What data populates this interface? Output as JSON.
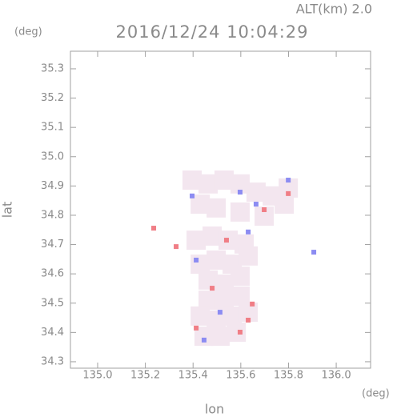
{
  "chart_data": {
    "type": "scatter",
    "title": "2016/12/24 10:04:29",
    "subtitle": "ALT(km) 2.0",
    "x_label": "lon",
    "x_unit": "(deg)",
    "y_label": "lat",
    "y_unit": "(deg)",
    "xlim": [
      134.886,
      136.144
    ],
    "ylim": [
      34.278,
      35.36
    ],
    "xticks": [
      {
        "value": 135,
        "label": "135.0"
      },
      135.2,
      135.4,
      135.6,
      135.8,
      {
        "value": 136,
        "label": "136.0"
      }
    ],
    "yticks": [
      34.3,
      34.4,
      34.5,
      34.6,
      34.7,
      34.8,
      34.9,
      {
        "value": 35,
        "label": "35.0"
      },
      35.1,
      35.2,
      35.3
    ],
    "series": [
      {
        "color": "#f3e6ef",
        "x": [
          135.396,
          135.463,
          135.53,
          135.597,
          135.664,
          135.732,
          135.799,
          135.43,
          135.497,
          135.597,
          135.698,
          135.782,
          135.413,
          135.48,
          135.547,
          135.614,
          135.43,
          135.497,
          135.564,
          135.631,
          135.463,
          135.53,
          135.597,
          135.463,
          135.53,
          135.597,
          135.43,
          135.497,
          135.564,
          135.631,
          135.446,
          135.513,
          135.581
        ],
        "y": [
          34.92,
          34.907,
          34.92,
          34.907,
          34.879,
          34.866,
          34.893,
          34.838,
          34.825,
          34.811,
          34.797,
          34.838,
          34.715,
          34.729,
          34.715,
          34.702,
          34.633,
          34.647,
          34.633,
          34.661,
          34.579,
          34.565,
          34.592,
          34.51,
          34.51,
          34.524,
          34.456,
          34.442,
          34.456,
          34.469,
          34.387,
          34.387,
          34.401
        ]
      },
      {
        "color": "#8c8cf2",
        "x": [
          135.906,
          135.413,
          135.664,
          135.597,
          135.446,
          135.631,
          135.396,
          135.799,
          135.513
        ],
        "y": [
          34.674,
          34.647,
          34.838,
          34.879,
          34.374,
          34.743,
          34.866,
          34.92,
          34.469
        ]
      },
      {
        "color": "#f07e86",
        "x": [
          135.235,
          135.329,
          135.648,
          135.413,
          135.54,
          135.698,
          135.799,
          135.597,
          135.48,
          135.631
        ],
        "y": [
          34.756,
          34.693,
          34.497,
          34.415,
          34.715,
          34.819,
          34.874,
          34.401,
          34.551,
          34.442
        ]
      }
    ]
  }
}
